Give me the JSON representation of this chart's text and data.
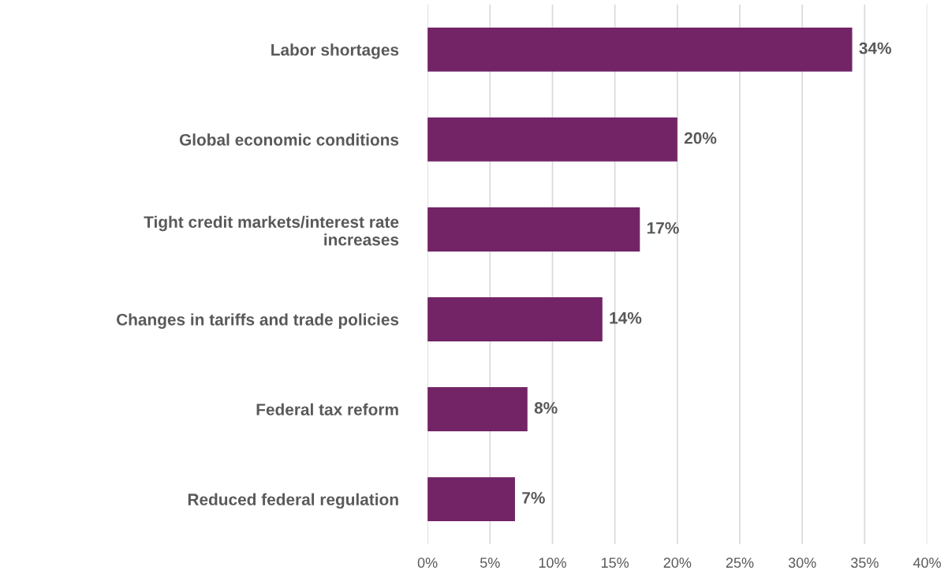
{
  "chart_data": {
    "type": "bar",
    "orientation": "horizontal",
    "categories": [
      "Labor shortages",
      "Global economic conditions",
      "Tight credit markets/interest rate\nincreases",
      "Changes in tariffs and trade policies",
      "Federal tax reform",
      "Reduced federal regulation"
    ],
    "values": [
      34,
      20,
      17,
      14,
      8,
      7
    ],
    "color": "#722467",
    "value_labels": [
      "34%",
      "20%",
      "17%",
      "14%",
      "8%",
      "7%"
    ],
    "xlim": [
      0,
      40
    ],
    "xticks": [
      {
        "value": 0,
        "label": "0%"
      },
      {
        "value": 5,
        "label": "5%"
      },
      {
        "value": 10,
        "label": "10%"
      },
      {
        "value": 15,
        "label": "15%"
      },
      {
        "value": 20,
        "label": "20%"
      },
      {
        "value": 25,
        "label": "25%"
      },
      {
        "value": 30,
        "label": "30%"
      },
      {
        "value": 35,
        "label": "35%"
      },
      {
        "value": 40,
        "label": "40%"
      }
    ],
    "grid": "x",
    "legend": false
  }
}
